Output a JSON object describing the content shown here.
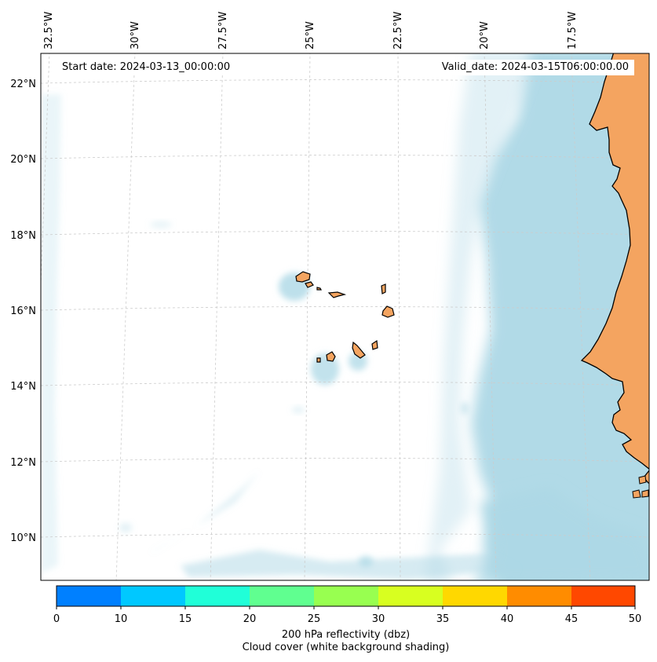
{
  "map": {
    "start_date": "Start date: 2024-03-13_00:00:00",
    "valid_date": "Valid_date: 2024-03-15T06:00:00.00",
    "lon_labels": [
      "32.5°W",
      "30°W",
      "27.5°W",
      "25°W",
      "22.5°W",
      "20°W",
      "17.5°W"
    ],
    "lat_labels": [
      "22°N",
      "20°N",
      "18°N",
      "16°N",
      "14°N",
      "12°N",
      "10°N"
    ],
    "colors": {
      "land": "#f4a460",
      "cloud": "#add8e6",
      "coastline": "#000000",
      "gridline": "#cccccc"
    }
  },
  "colorbar": {
    "ticks": [
      "0",
      "10",
      "15",
      "20",
      "25",
      "30",
      "35",
      "40",
      "45",
      "50"
    ],
    "colors": [
      "#0080ff",
      "#00c8ff",
      "#20ffd8",
      "#60ff90",
      "#98ff50",
      "#d8ff20",
      "#ffd800",
      "#ff8c00",
      "#ff4800"
    ],
    "label": "200 hPa reflectivity (dbz)",
    "sublabel": "Cloud cover (white background shading)"
  }
}
